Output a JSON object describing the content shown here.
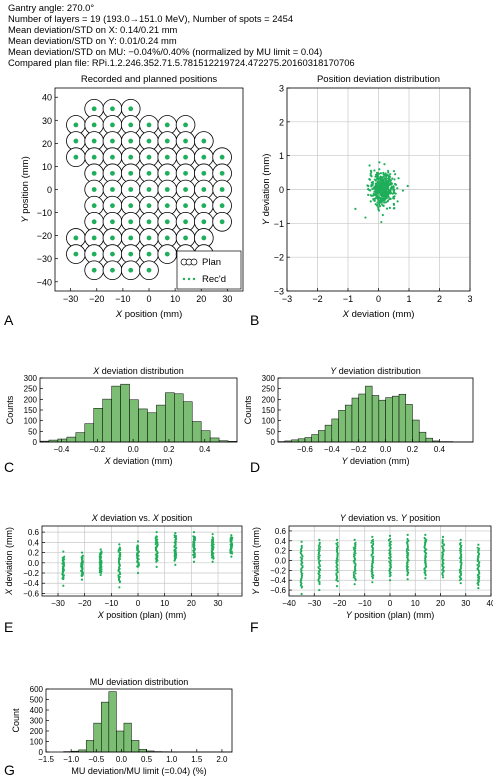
{
  "header": {
    "lines": [
      "Gantry angle: 270.0°",
      "Number of layers = 19 (193.0→151.0 MeV), Number of spots = 2454",
      "Mean deviation/STD on X: 0.14/0.21 mm",
      "Mean deviation/STD on Y: 0.01/0.24 mm",
      "Mean deviation/STD on MU: −0.04%/0.40% (normalized by MU limit = 0.04)",
      "Compared plan file: RPi.1.2.246.352.71.5.781512219724.472275.20160318170706"
    ]
  },
  "colors": {
    "rec": "#1fae5a",
    "bar": "#7bbd73",
    "bar_edge": "#000000",
    "plan_edge": "#000000",
    "grid": "#c8c8c8"
  },
  "chart_data": [
    {
      "id": "A",
      "panel_label": "A",
      "type": "scatter",
      "title": "Recorded and planned positions",
      "xlabel_italic": "X",
      "xlabel_rest": " position (mm)",
      "ylabel_italic": "Y",
      "ylabel_rest": " position (mm)",
      "xlim": [
        -36,
        36
      ],
      "ylim": [
        -44,
        44
      ],
      "xticks": [
        -30,
        -20,
        -10,
        0,
        10,
        20,
        30
      ],
      "yticks": [
        -40,
        -30,
        -20,
        -10,
        0,
        10,
        20,
        30,
        40
      ],
      "grid": false,
      "legend_position": "bottom-right",
      "legend": [
        "Plan",
        "Rec'd"
      ],
      "spot_pitch_mm": 7.2,
      "rows": [
        {
          "y": 35.0,
          "x_from": -21.0,
          "count": 3
        },
        {
          "y": 28.0,
          "x_from": -28.0,
          "count": 7
        },
        {
          "y": 21.0,
          "x_from": -28.0,
          "count": 8
        },
        {
          "y": 14.0,
          "x_from": -28.0,
          "count": 9
        },
        {
          "y": 7.0,
          "x_from": -21.0,
          "count": 8
        },
        {
          "y": 0.0,
          "x_from": -21.0,
          "count": 8
        },
        {
          "y": -7.0,
          "x_from": -21.0,
          "count": 8
        },
        {
          "y": -14.0,
          "x_from": -21.0,
          "count": 8
        },
        {
          "y": -21.0,
          "x_from": -28.0,
          "count": 8
        },
        {
          "y": -28.0,
          "x_from": -28.0,
          "count": 8
        },
        {
          "y": -35.0,
          "x_from": -21.0,
          "count": 4
        }
      ]
    },
    {
      "id": "B",
      "panel_label": "B",
      "type": "scatter",
      "title": "Position deviation distribution",
      "xlabel_italic": "X",
      "xlabel_rest": " deviation (mm)",
      "ylabel_italic": "Y",
      "ylabel_rest": " deviation (mm)",
      "xlim": [
        -3,
        3
      ],
      "ylim": [
        -3,
        3
      ],
      "xticks": [
        -3,
        -2,
        -1,
        0,
        1,
        2,
        3
      ],
      "yticks": [
        -3,
        -2,
        -1,
        0,
        1,
        2,
        3
      ],
      "grid": true,
      "cloud": {
        "cx": 0.14,
        "cy": 0.01,
        "sx": 0.21,
        "sy": 0.24,
        "n": 450
      }
    },
    {
      "id": "C",
      "panel_label": "C",
      "type": "bar",
      "title_italic": "X",
      "title_rest": " deviation distribution",
      "xlabel_italic": "X",
      "xlabel_rest": " deviation (mm)",
      "ylabel": "Counts",
      "xlim": [
        -0.52,
        0.58
      ],
      "ylim": [
        0,
        300
      ],
      "xticks": [
        -0.4,
        -0.2,
        0.0,
        0.2,
        0.4
      ],
      "xtick_labels": [
        "−0.4",
        "−0.2",
        "0.0",
        "0.2",
        "0.4"
      ],
      "yticks": [
        0,
        50,
        100,
        150,
        200,
        250,
        300
      ],
      "bin_start": -0.52,
      "bin_width": 0.05,
      "values": [
        4,
        9,
        14,
        23,
        44,
        86,
        158,
        201,
        262,
        271,
        198,
        155,
        137,
        173,
        231,
        226,
        189,
        96,
        53,
        19,
        6,
        3
      ]
    },
    {
      "id": "D",
      "panel_label": "D",
      "type": "bar",
      "title_italic": "Y",
      "title_rest": " deviation distribution",
      "xlabel_italic": "Y",
      "xlabel_rest": " deviation (mm)",
      "ylabel": "Counts",
      "xlim": [
        -0.8,
        0.65
      ],
      "ylim": [
        0,
        300
      ],
      "xticks": [
        -0.6,
        -0.4,
        -0.2,
        0.0,
        0.2,
        0.4
      ],
      "xtick_labels": [
        "−0.6",
        "−0.4",
        "−0.2",
        "0.0",
        "0.2",
        "0.4"
      ],
      "yticks": [
        0,
        50,
        100,
        150,
        200,
        250,
        300
      ],
      "bin_start": -0.8,
      "bin_width": 0.05,
      "values": [
        2,
        5,
        10,
        15,
        21,
        35,
        54,
        79,
        108,
        148,
        173,
        206,
        225,
        262,
        218,
        196,
        208,
        215,
        224,
        176,
        103,
        46,
        18,
        5,
        2,
        2,
        1,
        1,
        1
      ]
    },
    {
      "id": "E",
      "panel_label": "E",
      "type": "scatter",
      "title_italic": "X",
      "title_mid": " deviation vs. ",
      "title_italic2": "X",
      "title_rest": " position",
      "xlabel_italic": "X",
      "xlabel_rest": " position (plan) (mm)",
      "ylabel_italic": "X",
      "ylabel_rest": " deviation (mm)",
      "xlim": [
        -36,
        39
      ],
      "ylim": [
        -0.65,
        0.72
      ],
      "xticks": [
        -30,
        -20,
        -10,
        0,
        10,
        20,
        30
      ],
      "yticks": [
        -0.6,
        -0.4,
        -0.2,
        0.0,
        0.2,
        0.4,
        0.6
      ],
      "ytick_labels": [
        "−0.6",
        "−0.4",
        "−0.2",
        "0.0",
        "0.2",
        "0.4",
        "0.6"
      ],
      "grid": true,
      "columns": [
        {
          "x": -28.0,
          "lo": -0.32,
          "hi": 0.12,
          "out_lo": -0.45,
          "out_hi": 0.22
        },
        {
          "x": -21.0,
          "lo": -0.26,
          "hi": 0.14,
          "out_lo": -0.33,
          "out_hi": 0.2
        },
        {
          "x": -14.0,
          "lo": -0.2,
          "hi": 0.22,
          "out_lo": -0.24,
          "out_hi": 0.26
        },
        {
          "x": -7.0,
          "lo": -0.38,
          "hi": 0.3,
          "out_lo": -0.48,
          "out_hi": 0.36
        },
        {
          "x": 0.0,
          "lo": -0.08,
          "hi": 0.34,
          "out_lo": -0.2,
          "out_hi": 0.42
        },
        {
          "x": 7.0,
          "lo": 0.02,
          "hi": 0.52,
          "out_lo": -0.08,
          "out_hi": 0.6
        },
        {
          "x": 14.0,
          "lo": 0.04,
          "hi": 0.54,
          "out_lo": -0.04,
          "out_hi": 0.58
        },
        {
          "x": 21.0,
          "lo": 0.1,
          "hi": 0.52,
          "out_lo": 0.02,
          "out_hi": 0.6
        },
        {
          "x": 28.0,
          "lo": 0.08,
          "hi": 0.5,
          "out_lo": 0.02,
          "out_hi": 0.56
        },
        {
          "x": 35.0,
          "lo": 0.18,
          "hi": 0.5,
          "out_lo": 0.12,
          "out_hi": 0.54
        }
      ]
    },
    {
      "id": "F",
      "panel_label": "F",
      "type": "scatter",
      "title_italic": "Y",
      "title_mid": " deviation vs. ",
      "title_italic2": "Y",
      "title_rest": " position",
      "xlabel_italic": "Y",
      "xlabel_rest": " position (plan) (mm)",
      "ylabel_italic": "Y",
      "ylabel_rest": " deviation (mm)",
      "xlim": [
        -40,
        40
      ],
      "ylim": [
        -0.72,
        0.7
      ],
      "xticks": [
        -40,
        -30,
        -20,
        -10,
        0,
        10,
        20,
        30,
        40
      ],
      "yticks": [
        -0.6,
        -0.4,
        -0.2,
        0.0,
        0.2,
        0.4,
        0.6
      ],
      "ytick_labels": [
        "−0.6",
        "−0.4",
        "−0.2",
        "0.0",
        "0.2",
        "0.4",
        "0.6"
      ],
      "grid": true,
      "columns": [
        {
          "x": -35.0,
          "lo": -0.55,
          "hi": 0.3,
          "out_lo": -0.68,
          "out_hi": 0.38
        },
        {
          "x": -28.0,
          "lo": -0.48,
          "hi": 0.36,
          "out_lo": -0.6,
          "out_hi": 0.42
        },
        {
          "x": -21.0,
          "lo": -0.42,
          "hi": 0.36,
          "out_lo": -0.52,
          "out_hi": 0.42
        },
        {
          "x": -14.0,
          "lo": -0.4,
          "hi": 0.36,
          "out_lo": -0.48,
          "out_hi": 0.42
        },
        {
          "x": -7.0,
          "lo": -0.36,
          "hi": 0.42,
          "out_lo": -0.44,
          "out_hi": 0.48
        },
        {
          "x": 0.0,
          "lo": -0.32,
          "hi": 0.44,
          "out_lo": -0.4,
          "out_hi": 0.5
        },
        {
          "x": 7.0,
          "lo": -0.3,
          "hi": 0.44,
          "out_lo": -0.38,
          "out_hi": 0.52
        },
        {
          "x": 14.0,
          "lo": -0.3,
          "hi": 0.46,
          "out_lo": -0.36,
          "out_hi": 0.52
        },
        {
          "x": 21.0,
          "lo": -0.3,
          "hi": 0.42,
          "out_lo": -0.34,
          "out_hi": 0.48
        },
        {
          "x": 28.0,
          "lo": -0.4,
          "hi": 0.36,
          "out_lo": -0.46,
          "out_hi": 0.42
        },
        {
          "x": 35.0,
          "lo": -0.5,
          "hi": 0.26,
          "out_lo": -0.56,
          "out_hi": 0.32
        }
      ]
    },
    {
      "id": "G",
      "panel_label": "G",
      "type": "bar",
      "title": "MU deviation distribution",
      "xlabel": "MU deviation/MU limit (=0.04) (%)",
      "ylabel": "Count",
      "xlim": [
        -1.5,
        2.2
      ],
      "ylim": [
        0,
        600
      ],
      "xticks": [
        -1.5,
        -1.0,
        -0.5,
        0.0,
        0.5,
        1.0,
        1.5,
        2.0
      ],
      "xtick_labels": [
        "−1.5",
        "−1.0",
        "−0.5",
        "0.0",
        "0.5",
        "1.0",
        "1.5",
        "2.0"
      ],
      "yticks": [
        0,
        100,
        200,
        300,
        400,
        500,
        600
      ],
      "bin_start": -1.15,
      "bin_width": 0.15,
      "values": [
        4,
        8,
        20,
        110,
        275,
        475,
        575,
        200,
        275,
        110,
        25,
        10,
        4,
        3,
        2,
        1,
        1,
        1,
        1,
        1,
        1,
        1,
        1
      ]
    }
  ]
}
